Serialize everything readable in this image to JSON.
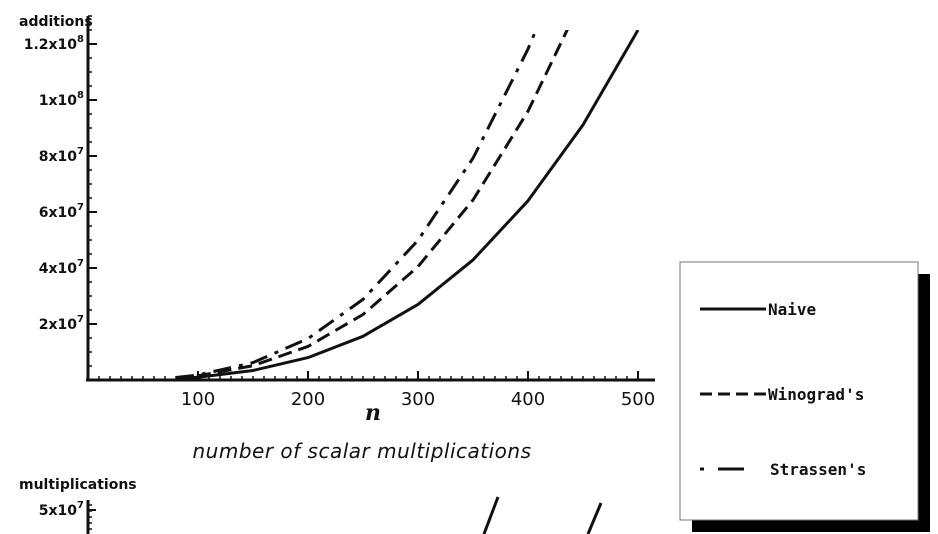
{
  "chart_data": [
    {
      "type": "line",
      "ylabel": "additions",
      "xlabel": "n",
      "xlim": [
        0,
        510
      ],
      "ylim": [
        0,
        130000000
      ],
      "x_ticks": [
        100,
        200,
        300,
        400,
        500
      ],
      "y_ticks": [
        {
          "value": 20000000,
          "base": "2x10",
          "exp": "7"
        },
        {
          "value": 40000000,
          "base": "4x10",
          "exp": "7"
        },
        {
          "value": 60000000,
          "base": "6x10",
          "exp": "7"
        },
        {
          "value": 80000000,
          "base": "8x10",
          "exp": "7"
        },
        {
          "value": 100000000,
          "base": "1x10",
          "exp": "8"
        },
        {
          "value": 120000000,
          "base": "1.2x10",
          "exp": "8"
        }
      ],
      "series": [
        {
          "name": "Naive",
          "x": [
            80,
            100,
            150,
            200,
            250,
            300,
            350,
            400,
            450,
            500
          ],
          "values": [
            500000,
            1000000,
            3400000,
            8000000,
            15600000,
            27000000,
            42900000,
            64000000,
            91100000,
            125000000
          ]
        },
        {
          "name": "Winograd's",
          "x": [
            80,
            100,
            150,
            200,
            250,
            300,
            350,
            400,
            450
          ],
          "values": [
            800000,
            1500000,
            5100000,
            12000000,
            23400000,
            40500000,
            64300000,
            96000000,
            136700000
          ]
        },
        {
          "name": "Strassen's",
          "x": [
            80,
            100,
            150,
            200,
            250,
            300,
            350,
            400,
            420
          ],
          "values": [
            900000,
            1800000,
            6200000,
            14800000,
            28800000,
            49900000,
            79200000,
            118200000,
            136900000
          ]
        }
      ]
    },
    {
      "type": "line",
      "ylabel": "multiplications",
      "y_ticks": [
        {
          "value": 50000000,
          "base": "5x10",
          "exp": "7"
        }
      ]
    }
  ],
  "caption": "number of scalar multiplications",
  "legend": {
    "items": [
      {
        "name": "Naive",
        "style": "solid"
      },
      {
        "name": "Winograd's",
        "style": "dashed"
      },
      {
        "name": "Strassen's",
        "style": "dashdot"
      }
    ]
  }
}
